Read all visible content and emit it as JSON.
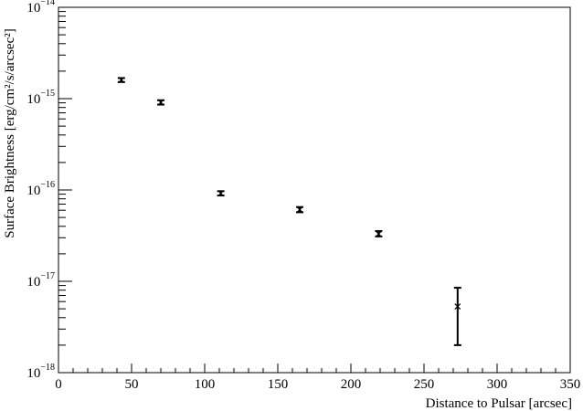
{
  "chart_data": {
    "type": "scatter",
    "title": "",
    "xlabel": "Distance to Pulsar [arcsec]",
    "ylabel": "Surface Brightness [erg/cm²/s/arcsec²]",
    "xlim": [
      0,
      350
    ],
    "ylim": [
      1e-18,
      1e-14
    ],
    "y_scale": "log",
    "grid": false,
    "legend": "none",
    "marker": "x",
    "x_ticks": [
      {
        "value": 0,
        "label": "0"
      },
      {
        "value": 50,
        "label": "50"
      },
      {
        "value": 100,
        "label": "100"
      },
      {
        "value": 150,
        "label": "150"
      },
      {
        "value": 200,
        "label": "200"
      },
      {
        "value": 250,
        "label": "250"
      },
      {
        "value": 300,
        "label": "300"
      },
      {
        "value": 350,
        "label": "350"
      }
    ],
    "y_ticks": [
      {
        "exp": -18,
        "base": "10",
        "sup": "−18"
      },
      {
        "exp": -17,
        "base": "10",
        "sup": "−17"
      },
      {
        "exp": -16,
        "base": "10",
        "sup": "−16"
      },
      {
        "exp": -15,
        "base": "10",
        "sup": "−15"
      },
      {
        "exp": -14,
        "base": "10",
        "sup": "−14"
      }
    ],
    "points": [
      {
        "x": 43,
        "y": 1.6e-15,
        "y_low": 1.52e-15,
        "y_high": 1.68e-15
      },
      {
        "x": 70,
        "y": 9.1e-16,
        "y_low": 8.6e-16,
        "y_high": 9.6e-16
      },
      {
        "x": 111,
        "y": 9.2e-17,
        "y_low": 8.7e-17,
        "y_high": 9.7e-17
      },
      {
        "x": 165,
        "y": 6.1e-17,
        "y_low": 5.7e-17,
        "y_high": 6.5e-17
      },
      {
        "x": 219,
        "y": 3.3e-17,
        "y_low": 3.1e-17,
        "y_high": 3.55e-17
      },
      {
        "x": 273,
        "y": 5.3e-18,
        "y_low": 2e-18,
        "y_high": 8.5e-18
      }
    ],
    "colors": {
      "axis": "#000000",
      "marker": "#000000",
      "background": "#ffffff"
    }
  }
}
